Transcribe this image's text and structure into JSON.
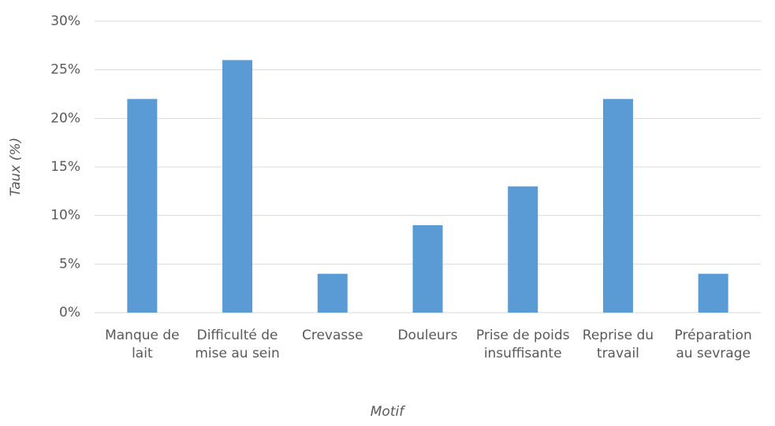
{
  "chart_data": {
    "type": "bar",
    "categories": [
      "Manque de lait",
      "Difficulté de mise au sein",
      "Crevasse",
      "Douleurs",
      "Prise de poids insuffisante",
      "Reprise du travail",
      "Préparation au sevrage"
    ],
    "values": [
      22,
      26,
      4,
      9,
      13,
      22,
      4
    ],
    "color": "#5b9bd5",
    "x_label": "Motif",
    "y_label": "Taux (%)",
    "ylim": [
      0,
      30
    ],
    "yticks": [
      {
        "value": 0,
        "label": "0%"
      },
      {
        "value": 5,
        "label": "5%"
      },
      {
        "value": 10,
        "label": "10%"
      },
      {
        "value": 15,
        "label": "15%"
      },
      {
        "value": 20,
        "label": "20%"
      },
      {
        "value": 25,
        "label": "25%"
      },
      {
        "value": 30,
        "label": "30%"
      }
    ],
    "grid": true
  }
}
